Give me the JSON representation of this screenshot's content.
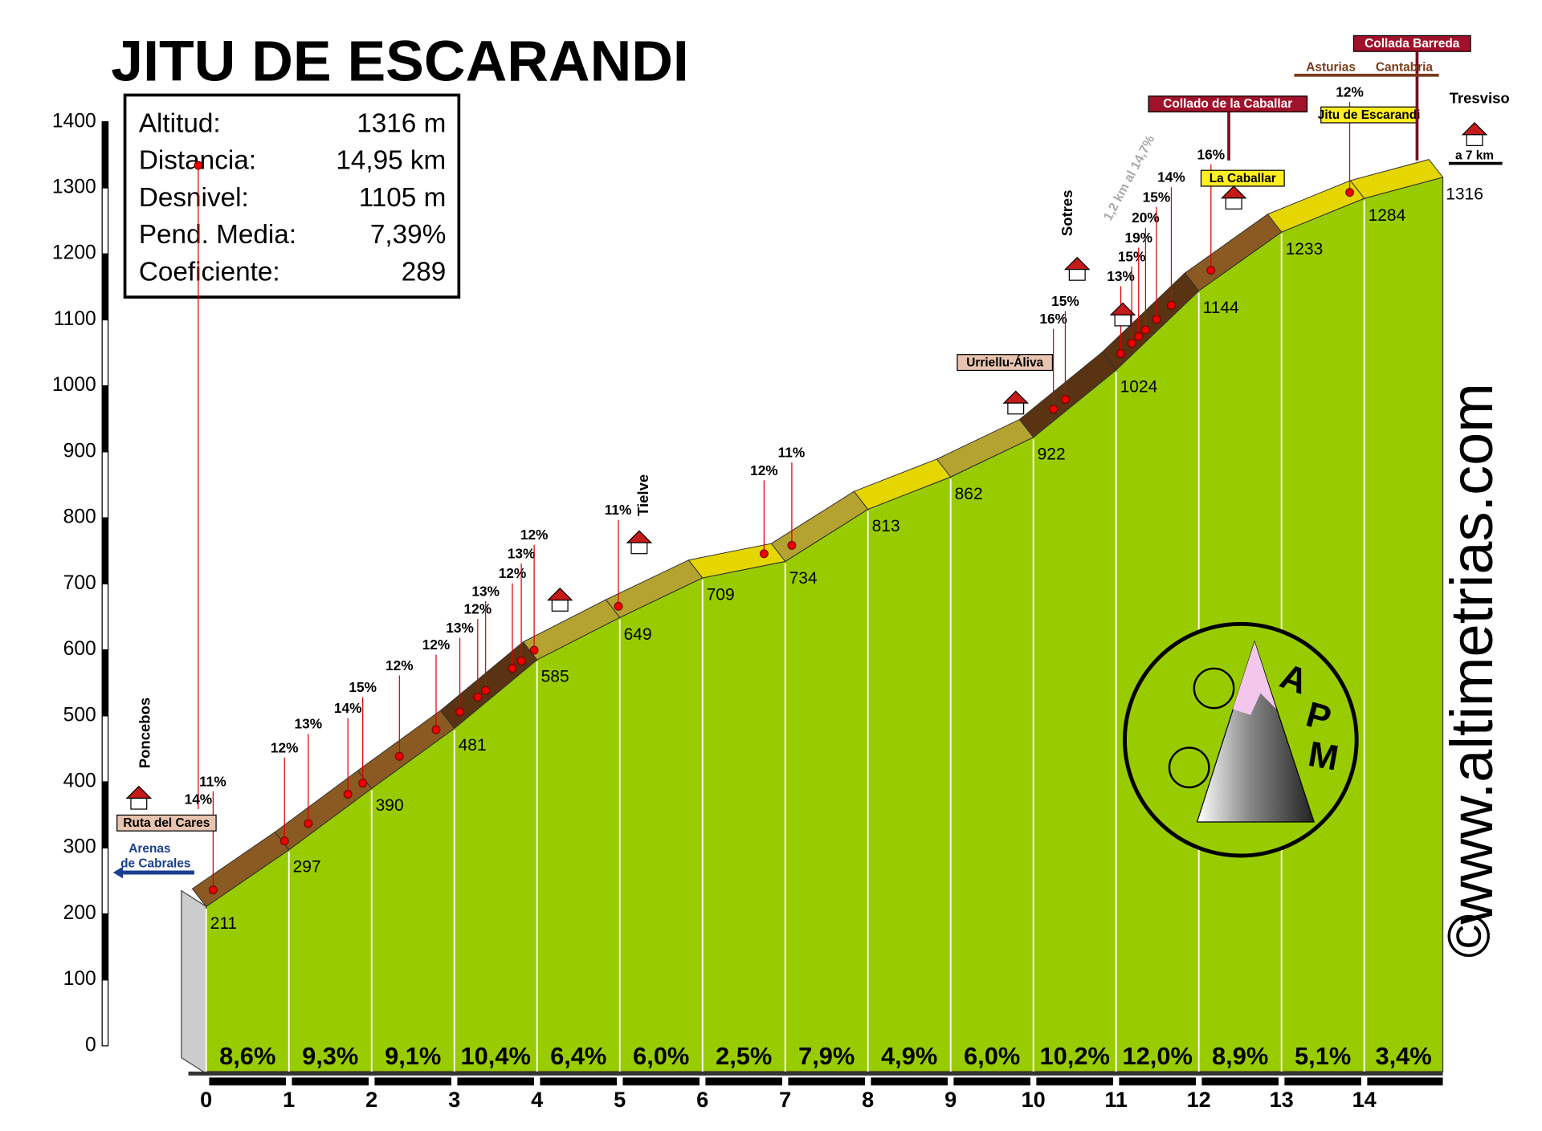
{
  "chart_data": {
    "type": "profile",
    "title": "JITU DE ESCARANDI",
    "x": [
      0,
      1,
      2,
      3,
      4,
      5,
      6,
      7,
      8,
      9,
      10,
      11,
      12,
      13,
      14,
      14.95
    ],
    "values": [
      211,
      297,
      390,
      481,
      585,
      649,
      709,
      734,
      813,
      862,
      922,
      1024,
      1144,
      1233,
      1284,
      1316
    ],
    "segments": {
      "values": [
        8.6,
        9.3,
        9.1,
        10.4,
        6.4,
        6.0,
        2.5,
        7.9,
        4.9,
        6.0,
        10.2,
        12.0,
        8.9,
        5.1,
        3.4
      ],
      "value_labels": [
        "8,6%",
        "9,3%",
        "9,1%",
        "10,4%",
        "6,4%",
        "6,0%",
        "2,5%",
        "7,9%",
        "4,9%",
        "6,0%",
        "10,2%",
        "12,0%",
        "8,9%",
        "5,1%",
        "3,4%"
      ]
    },
    "xlim": [
      0,
      14.95
    ],
    "xticks": [
      0,
      1,
      2,
      3,
      4,
      5,
      6,
      7,
      8,
      9,
      10,
      11,
      12,
      13,
      14
    ],
    "ylim": [
      0,
      1400
    ],
    "yticks": [
      0,
      100,
      200,
      300,
      400,
      500,
      600,
      700,
      800,
      900,
      1000,
      1100,
      1200,
      1300,
      1400
    ],
    "color": "#99cc00"
  },
  "info": [
    {
      "label": "Altitud:",
      "value": "1316 m"
    },
    {
      "label": "Distancia:",
      "value": "14,95 km"
    },
    {
      "label": "Desnivel:",
      "value": "1105 m"
    },
    {
      "label": "Pend. Media:",
      "value": "7,39%"
    },
    {
      "label": "Coeficiente:",
      "value": "289"
    }
  ],
  "places": [
    "Poncebos",
    "Tielve",
    "Sotres",
    "Tresviso"
  ],
  "signs": [
    "Ruta del Cares",
    "Arenas",
    "de Cabrales",
    "Urriellu-Áliva",
    "La Caballar",
    "Jitu de Escarandi",
    "Collado de la Caballar",
    "Collada Barreda",
    "Asturias",
    "Cantabria",
    "a 7 km"
  ],
  "note": "1,2 km al 14,7%",
  "gradient_labels": [
    "11%",
    "14%",
    "12%",
    "13%",
    "14%",
    "15%",
    "12%",
    "12%",
    "13%",
    "12%",
    "13%",
    "12%",
    "13%",
    "12%",
    "11%",
    "12%",
    "11%",
    "16%",
    "15%",
    "13%",
    "15%",
    "19%",
    "20%",
    "15%",
    "14%",
    "16%",
    "12%"
  ],
  "logo": [
    "A",
    "P",
    "M"
  ],
  "website": "www.altimetrias.com",
  "copyright": "©"
}
